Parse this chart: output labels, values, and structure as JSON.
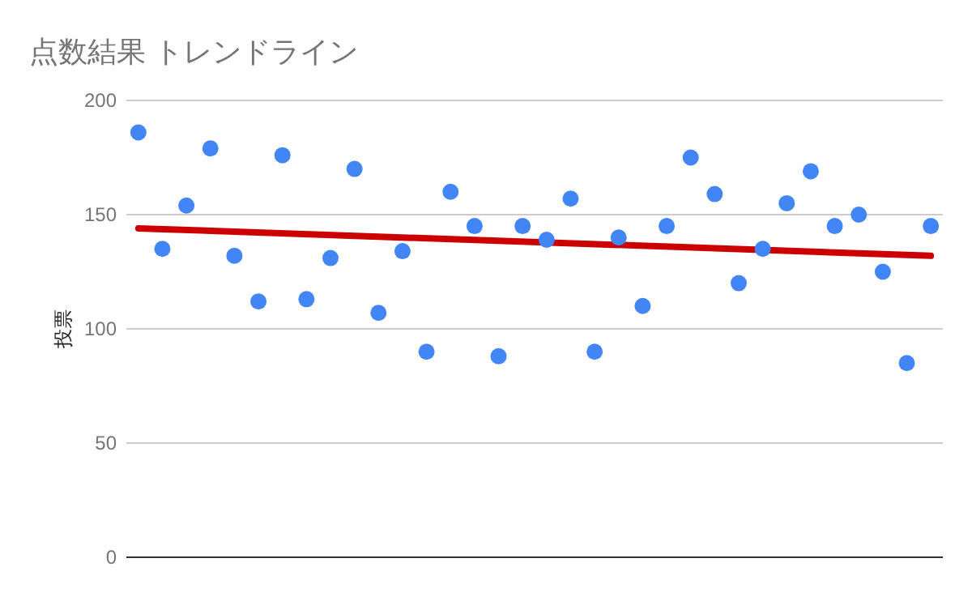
{
  "chart_data": {
    "type": "scatter",
    "title": "点数結果 トレンドライン",
    "ylabel": "投票",
    "categories": [
      null,
      null,
      null,
      null,
      null,
      null,
      null,
      null,
      null,
      null,
      null,
      null,
      null,
      null,
      null,
      null,
      null,
      null,
      null,
      null,
      null,
      null,
      null,
      null,
      null,
      null,
      null,
      null,
      null,
      null,
      null,
      null,
      null,
      null
    ],
    "series": [
      {
        "type": "scatter",
        "color": "#4285f4",
        "marker": "circle",
        "values": [
          186,
          135,
          154,
          179,
          132,
          112,
          176,
          113,
          131,
          170,
          107,
          134,
          90,
          160,
          145,
          88,
          145,
          139,
          157,
          90,
          140,
          110,
          145,
          175,
          159,
          120,
          135,
          155,
          169,
          145,
          150,
          125,
          85,
          145
        ]
      },
      {
        "type": "line",
        "color": "#cc0000",
        "line_style": "solid",
        "values": [
          144,
          null,
          null,
          null,
          null,
          null,
          null,
          null,
          null,
          null,
          null,
          null,
          null,
          null,
          null,
          null,
          null,
          null,
          null,
          null,
          null,
          null,
          null,
          null,
          null,
          null,
          null,
          null,
          null,
          null,
          null,
          null,
          null,
          132
        ]
      }
    ],
    "ylim": [
      0,
      200
    ],
    "yticks": [
      0,
      50,
      100,
      150,
      200
    ],
    "grid": "y",
    "tick_labels": "y"
  }
}
